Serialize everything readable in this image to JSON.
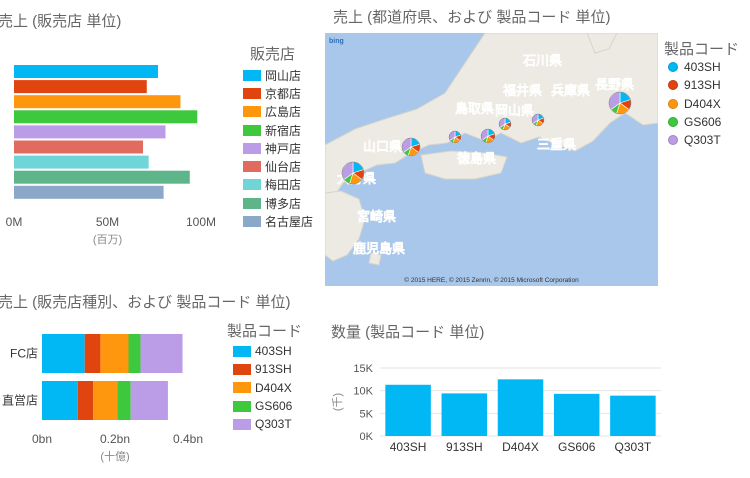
{
  "chart_data": [
    {
      "type": "bar",
      "orientation": "horizontal",
      "title": "売上 (販売店 単位)",
      "xlabel": "(百万)",
      "legend_title": "販売店",
      "legend_position": "right",
      "categories": [
        "岡山店",
        "京都店",
        "広島店",
        "新宿店",
        "神戸店",
        "仙台店",
        "梅田店",
        "博多店",
        "名古屋店"
      ],
      "values": [
        77,
        71,
        89,
        98,
        81,
        69,
        72,
        94,
        80
      ],
      "colors": [
        "#01b8f5",
        "#e04510",
        "#fe960e",
        "#3ec83e",
        "#bb9ce7",
        "#e06c5f",
        "#6fd5d7",
        "#5fb58a",
        "#8ba8c9"
      ],
      "xlim": [
        0,
        100
      ],
      "x_ticks": [
        0,
        50,
        100
      ],
      "x_tick_labels": [
        "0M",
        "50M",
        "100M"
      ]
    },
    {
      "type": "map",
      "title": "売上 (都道府県、および 製品コード 単位)",
      "legend_title": "製品コード",
      "legend_position": "right",
      "attribution": "© 2015 HERE, © 2015 Zenrin, © 2015 Microsoft Corporation",
      "logo_text": "bing",
      "map_labels": [
        "石川県",
        "長野県",
        "福井県",
        "兵庫県",
        "鳥取県",
        "岡山県",
        "山口県",
        "徳島県",
        "三重県",
        "大分県",
        "宮崎県",
        "鹿児島県"
      ],
      "series_names": [
        "403SH",
        "913SH",
        "D404X",
        "GS606",
        "Q303T"
      ],
      "colors": [
        "#01b8f5",
        "#e04510",
        "#fe960e",
        "#3ec83e",
        "#bb9ce7"
      ],
      "points": [
        {
          "slices": [
            20,
            15,
            20,
            10,
            35
          ],
          "size": 11
        },
        {
          "slices": [
            20,
            15,
            20,
            10,
            35
          ],
          "size": 9
        },
        {
          "slices": [
            20,
            15,
            20,
            10,
            35
          ],
          "size": 6
        },
        {
          "slices": [
            20,
            15,
            20,
            10,
            35
          ],
          "size": 7
        },
        {
          "slices": [
            20,
            15,
            20,
            10,
            35
          ],
          "size": 6
        },
        {
          "slices": [
            20,
            15,
            20,
            10,
            35
          ],
          "size": 6
        },
        {
          "slices": [
            20,
            15,
            20,
            10,
            35
          ],
          "size": 11
        }
      ]
    },
    {
      "type": "bar",
      "orientation": "horizontal",
      "stacked": true,
      "title": "売上 (販売店種別、および 製品コード 単位)",
      "xlabel": "(十億)",
      "legend_title": "製品コード",
      "legend_position": "right",
      "categories": [
        "FC店",
        "直営店"
      ],
      "series": [
        {
          "name": "403SH",
          "values": [
            0.117,
            0.098
          ]
        },
        {
          "name": "913SH",
          "values": [
            0.043,
            0.042
          ]
        },
        {
          "name": "D404X",
          "values": [
            0.077,
            0.067
          ]
        },
        {
          "name": "GS606",
          "values": [
            0.033,
            0.036
          ]
        },
        {
          "name": "Q303T",
          "values": [
            0.115,
            0.102
          ]
        }
      ],
      "colors": [
        "#01b8f5",
        "#e04510",
        "#fe960e",
        "#3ec83e",
        "#bb9ce7"
      ],
      "xlim": [
        0,
        0.4
      ],
      "x_ticks": [
        0,
        0.2,
        0.4
      ],
      "x_tick_labels": [
        "0bn",
        "0.2bn",
        "0.4bn"
      ]
    },
    {
      "type": "bar",
      "orientation": "vertical",
      "title": "数量 (製品コード 単位)",
      "ylabel": "(千)",
      "categories": [
        "403SH",
        "913SH",
        "D404X",
        "GS606",
        "Q303T"
      ],
      "values": [
        11300,
        9400,
        12500,
        9300,
        8900
      ],
      "color": "#01b8f5",
      "ylim": [
        0,
        15000
      ],
      "y_ticks": [
        0,
        5000,
        10000,
        15000
      ],
      "y_tick_labels": [
        "0K",
        "5K",
        "10K",
        "15K"
      ],
      "grid": true
    }
  ]
}
